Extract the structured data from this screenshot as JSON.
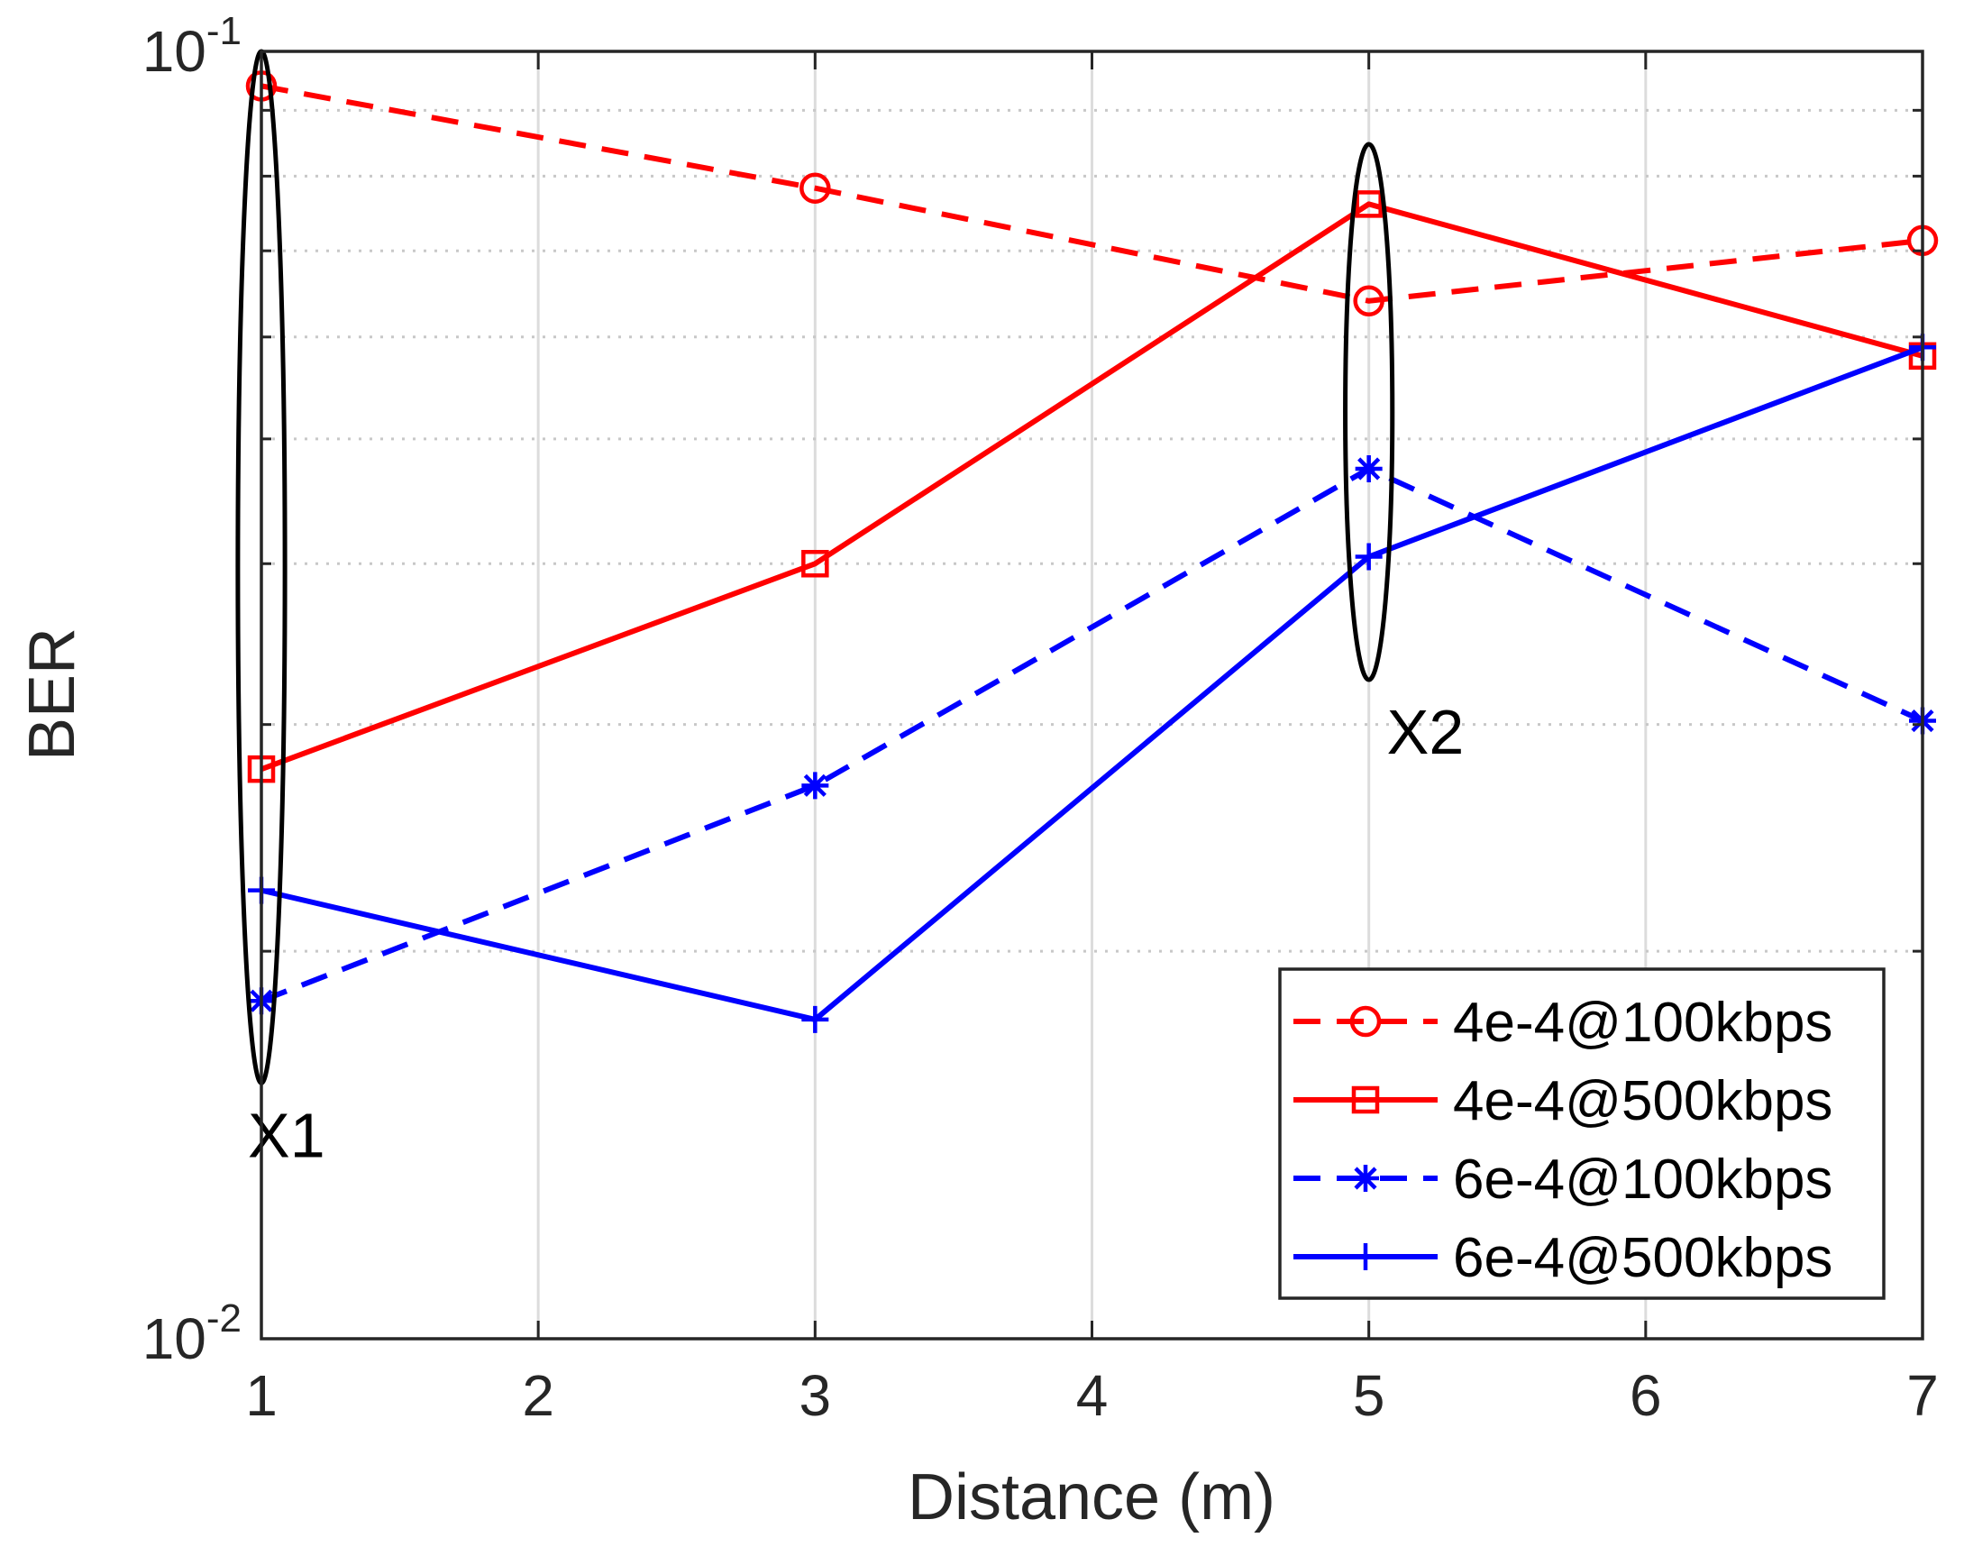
{
  "chart_data": {
    "type": "line",
    "title": "",
    "xlabel": "Distance (m)",
    "ylabel": "BER",
    "xlim": [
      1,
      7
    ],
    "ylim": [
      0.01,
      0.1
    ],
    "yscale": "log",
    "grid": true,
    "legend_position": "bottom-right",
    "x_ticks": [
      1,
      2,
      3,
      4,
      5,
      6,
      7
    ],
    "x_tick_labels": [
      "1",
      "2",
      "3",
      "4",
      "5",
      "6",
      "7"
    ],
    "y_ticks": [
      0.01,
      0.1
    ],
    "y_tick_labels": [
      {
        "base": "10",
        "exp": "-2"
      },
      {
        "base": "10",
        "exp": "-1"
      }
    ],
    "series": [
      {
        "name": "4e-4@100kbps",
        "color": "#ff0000",
        "dash": "dashed",
        "marker": "circle",
        "x": [
          1,
          3,
          5,
          7
        ],
        "y": [
          0.094,
          0.0783,
          0.064,
          0.0713
        ]
      },
      {
        "name": "4e-4@500kbps",
        "color": "#ff0000",
        "dash": "solid",
        "marker": "square",
        "x": [
          1,
          3,
          5,
          7
        ],
        "y": [
          0.0277,
          0.04,
          0.0761,
          0.058
        ]
      },
      {
        "name": "6e-4@100kbps",
        "color": "#0000ff",
        "dash": "dashed",
        "marker": "asterisk",
        "x": [
          1,
          3,
          5,
          7
        ],
        "y": [
          0.0183,
          0.0269,
          0.0474,
          0.0302
        ]
      },
      {
        "name": "6e-4@500kbps",
        "color": "#0000ff",
        "dash": "solid",
        "marker": "plus",
        "x": [
          1,
          3,
          5,
          7
        ],
        "y": [
          0.0223,
          0.0177,
          0.0405,
          0.0589
        ]
      }
    ],
    "annotations": [
      {
        "label": "X1",
        "x": 1,
        "y_from": 0.0158,
        "y_to": 0.1,
        "width_x": 0.17
      },
      {
        "label": "X2",
        "x": 5,
        "y_from": 0.0325,
        "y_to": 0.0847,
        "width_x": 0.17
      }
    ]
  }
}
